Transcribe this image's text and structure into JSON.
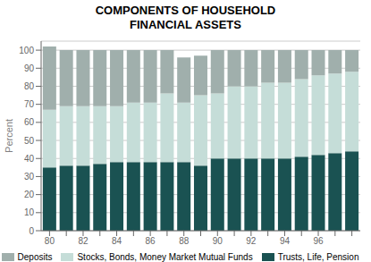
{
  "chart_data": {
    "type": "bar",
    "title": "COMPONENTS OF HOUSEHOLD\nFINANCIAL ASSETS",
    "y_label": "Percent",
    "categories": [
      "80",
      null,
      "82",
      null,
      "84",
      null,
      "86",
      null,
      "88",
      null,
      "90",
      null,
      "92",
      null,
      "94",
      null,
      "96",
      null,
      null
    ],
    "series": [
      {
        "name": "Trusts, Life, Pension",
        "color": "#1a5252",
        "values": [
          35,
          36,
          36,
          37,
          38,
          38,
          38,
          38,
          38,
          36,
          40,
          40,
          40,
          40,
          40,
          41,
          42,
          43,
          44
        ]
      },
      {
        "name": "Stocks, Bonds, Money Market Mutual Funds",
        "color": "#c5ddd8",
        "values": [
          32,
          33,
          33,
          32,
          31,
          33,
          33,
          38,
          33,
          39,
          36,
          40,
          40,
          42,
          42,
          43,
          44,
          44,
          44
        ]
      },
      {
        "name": "Deposits",
        "color": "#a0afac",
        "values": [
          35,
          31,
          31,
          31,
          31,
          29,
          29,
          24,
          25,
          22,
          24,
          20,
          20,
          18,
          18,
          16,
          14,
          13,
          12
        ]
      }
    ],
    "stacked": true,
    "ylim": [
      0,
      105
    ],
    "yticks": [
      0,
      10,
      20,
      30,
      40,
      50,
      60,
      70,
      80,
      90,
      100
    ],
    "grid": true
  }
}
